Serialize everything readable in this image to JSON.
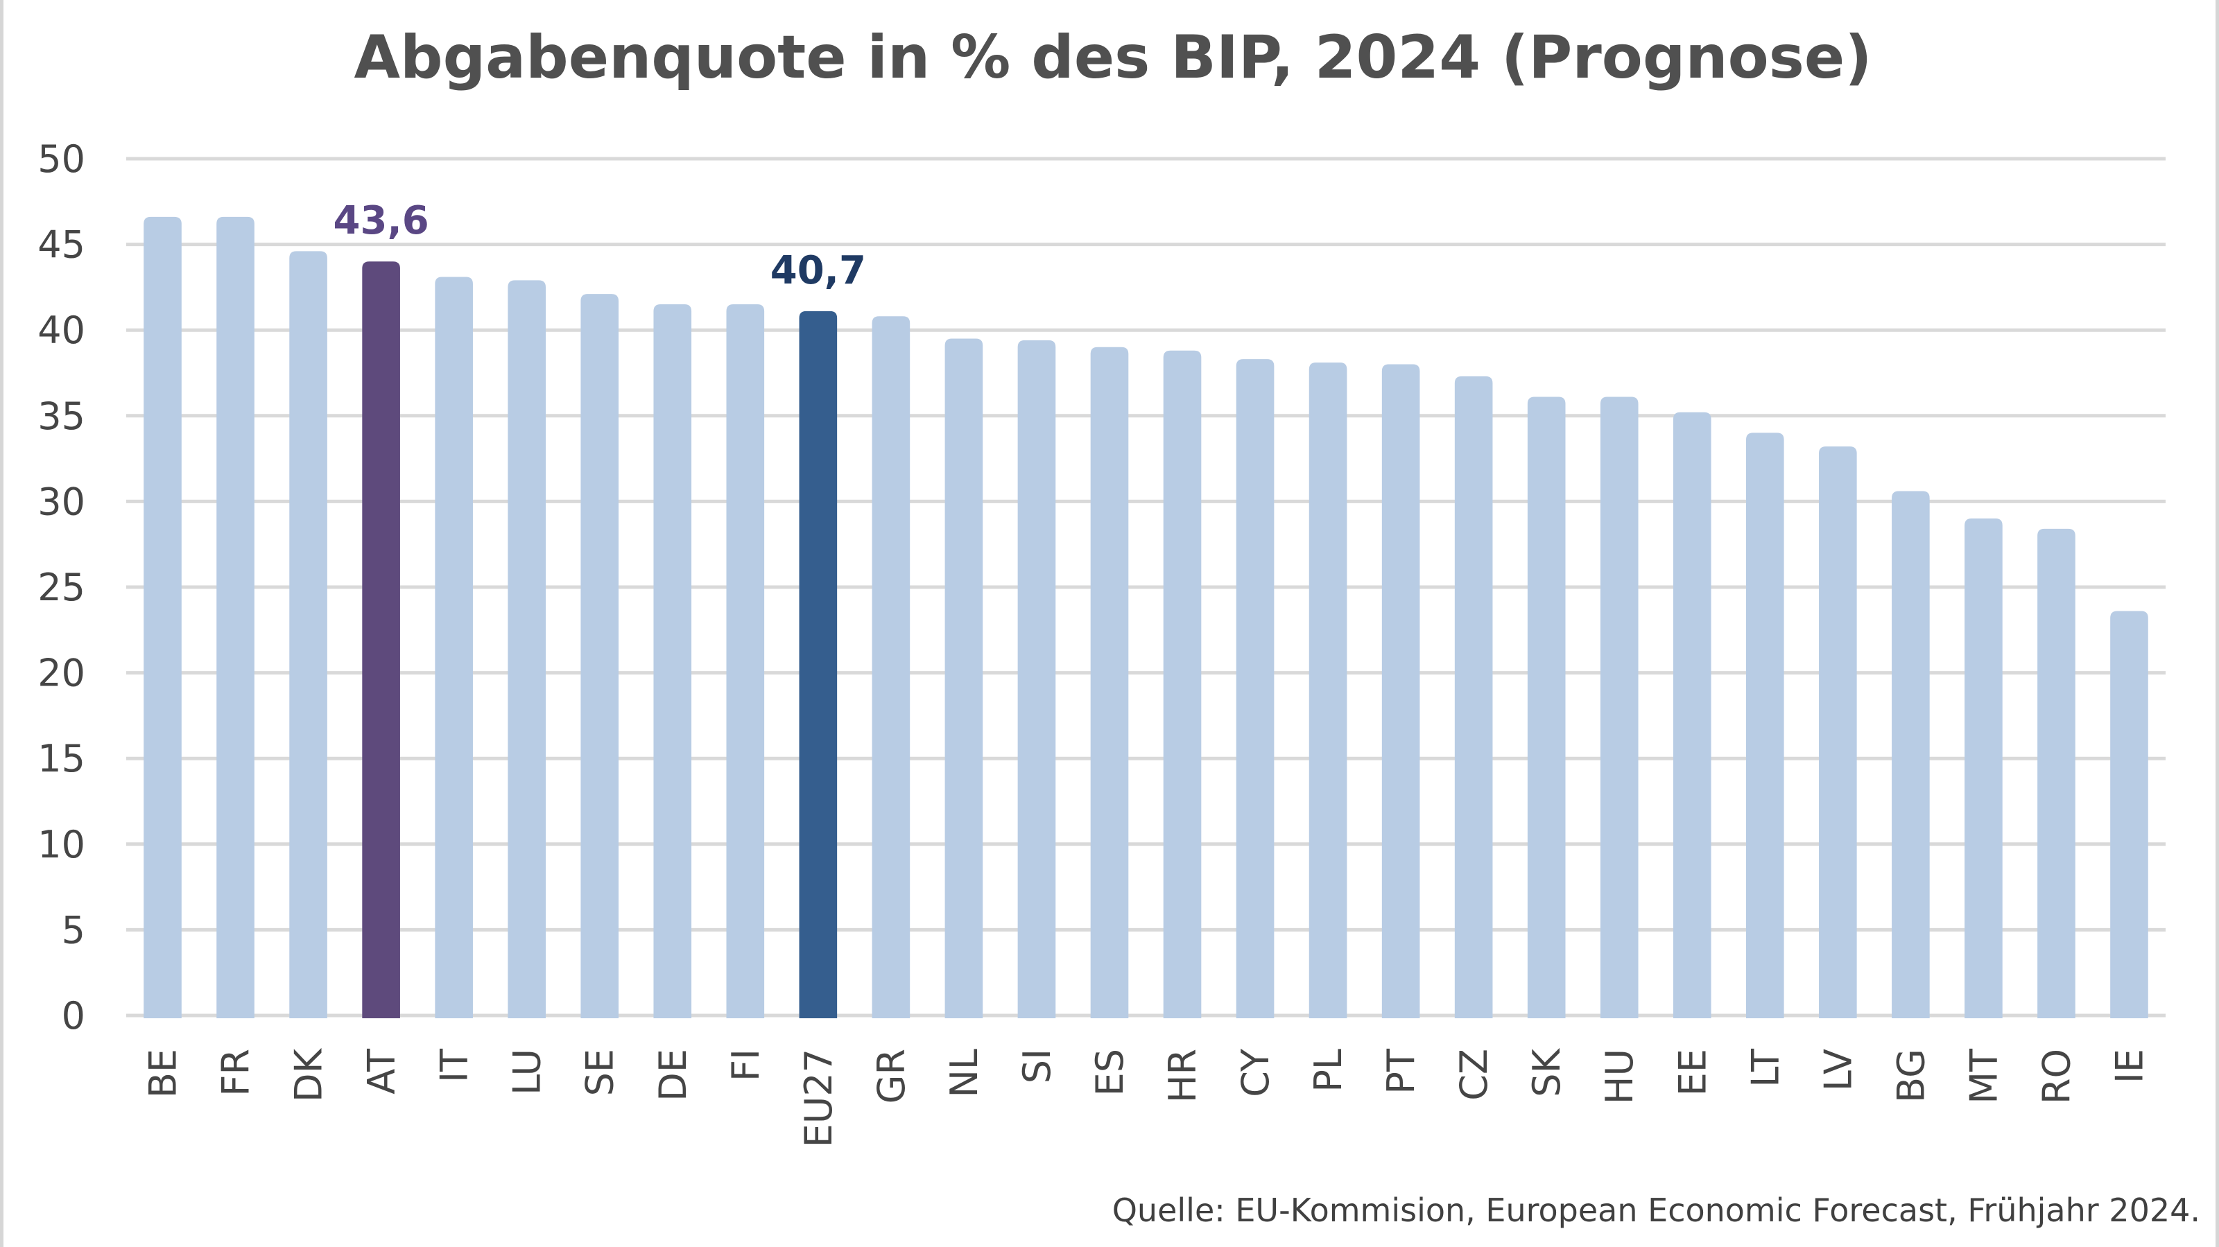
{
  "chart_data": {
    "type": "bar",
    "title": "Abgabenquote in % des BIP, 2024 (Prognose)",
    "xlabel": "",
    "ylabel": "",
    "ylim": [
      0,
      50
    ],
    "yticks": [
      0,
      5,
      10,
      15,
      20,
      25,
      30,
      35,
      40,
      45,
      50
    ],
    "grid": true,
    "legend": "none",
    "categories": [
      "BE",
      "FR",
      "DK",
      "AT",
      "IT",
      "LU",
      "SE",
      "DE",
      "FI",
      "EU27",
      "GR",
      "NL",
      "SI",
      "ES",
      "HR",
      "CY",
      "PL",
      "PT",
      "CZ",
      "SK",
      "HU",
      "EE",
      "LT",
      "LV",
      "BG",
      "MT",
      "RO",
      "IE"
    ],
    "values": [
      46.2,
      46.2,
      44.2,
      43.6,
      42.7,
      42.5,
      41.7,
      41.1,
      41.1,
      40.7,
      40.4,
      39.1,
      39.0,
      38.6,
      38.4,
      37.9,
      37.7,
      37.6,
      36.9,
      35.7,
      35.7,
      34.8,
      33.6,
      32.8,
      30.2,
      28.6,
      28.0,
      23.2
    ],
    "highlights": [
      {
        "category": "AT",
        "label": "43,6",
        "bar_color": "#5e4a7c",
        "label_color": "#5a4784"
      },
      {
        "category": "EU27",
        "label": "40,7",
        "bar_color": "#355e8e",
        "label_color": "#1f3a63"
      }
    ],
    "default_bar_color": "#b8cce4",
    "source": "Quelle: EU-Kommision, European Economic Forecast, Frühjahr 2024."
  }
}
